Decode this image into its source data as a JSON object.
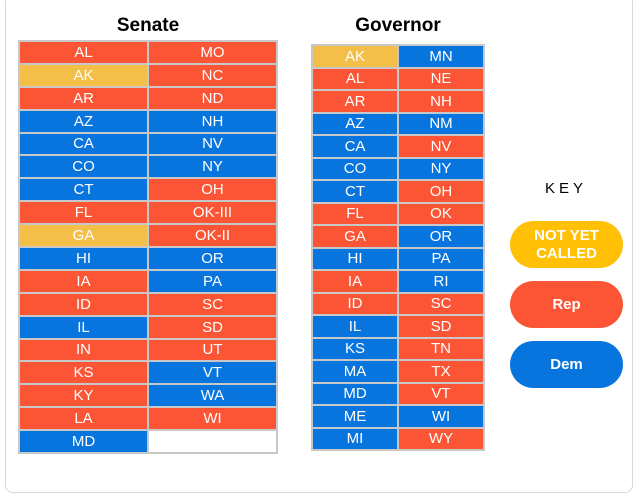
{
  "colors": {
    "rep": "#fc5535",
    "dem": "#0875df",
    "not_called": "#f4bf48",
    "empty": "#ffffff"
  },
  "key": {
    "title": "KEY",
    "items": [
      {
        "label": "NOT YET\nCALLED",
        "color": "#ffc005",
        "status": "not_called"
      },
      {
        "label": "Rep",
        "color": "#fc5535",
        "status": "rep"
      },
      {
        "label": "Dem",
        "color": "#0875df",
        "status": "dem"
      }
    ]
  },
  "chart_data": [
    {
      "type": "table",
      "title": "Senate",
      "columns": [
        [
          {
            "state": "AL",
            "status": "rep"
          },
          {
            "state": "AK",
            "status": "not_called"
          },
          {
            "state": "AR",
            "status": "rep"
          },
          {
            "state": "AZ",
            "status": "dem"
          },
          {
            "state": "CA",
            "status": "dem"
          },
          {
            "state": "CO",
            "status": "dem"
          },
          {
            "state": "CT",
            "status": "dem"
          },
          {
            "state": "FL",
            "status": "rep"
          },
          {
            "state": "GA",
            "status": "not_called"
          },
          {
            "state": "HI",
            "status": "dem"
          },
          {
            "state": "IA",
            "status": "rep"
          },
          {
            "state": "ID",
            "status": "rep"
          },
          {
            "state": "IL",
            "status": "dem"
          },
          {
            "state": "IN",
            "status": "rep"
          },
          {
            "state": "KS",
            "status": "rep"
          },
          {
            "state": "KY",
            "status": "rep"
          },
          {
            "state": "LA",
            "status": "rep"
          },
          {
            "state": "MD",
            "status": "dem"
          }
        ],
        [
          {
            "state": "MO",
            "status": "rep"
          },
          {
            "state": "NC",
            "status": "rep"
          },
          {
            "state": "ND",
            "status": "rep"
          },
          {
            "state": "NH",
            "status": "dem"
          },
          {
            "state": "NV",
            "status": "dem"
          },
          {
            "state": "NY",
            "status": "dem"
          },
          {
            "state": "OH",
            "status": "rep"
          },
          {
            "state": "OK-III",
            "status": "rep"
          },
          {
            "state": "OK-II",
            "status": "rep"
          },
          {
            "state": "OR",
            "status": "dem"
          },
          {
            "state": "PA",
            "status": "dem"
          },
          {
            "state": "SC",
            "status": "rep"
          },
          {
            "state": "SD",
            "status": "rep"
          },
          {
            "state": "UT",
            "status": "rep"
          },
          {
            "state": "VT",
            "status": "dem"
          },
          {
            "state": "WA",
            "status": "dem"
          },
          {
            "state": "WI",
            "status": "rep"
          },
          {
            "state": "",
            "status": "empty"
          }
        ]
      ]
    },
    {
      "type": "table",
      "title": "Governor",
      "columns": [
        [
          {
            "state": "AK",
            "status": "not_called"
          },
          {
            "state": "AL",
            "status": "rep"
          },
          {
            "state": "AR",
            "status": "rep"
          },
          {
            "state": "AZ",
            "status": "dem"
          },
          {
            "state": "CA",
            "status": "dem"
          },
          {
            "state": "CO",
            "status": "dem"
          },
          {
            "state": "CT",
            "status": "dem"
          },
          {
            "state": "FL",
            "status": "rep"
          },
          {
            "state": "GA",
            "status": "rep"
          },
          {
            "state": "HI",
            "status": "dem"
          },
          {
            "state": "IA",
            "status": "rep"
          },
          {
            "state": "ID",
            "status": "rep"
          },
          {
            "state": "IL",
            "status": "dem"
          },
          {
            "state": "KS",
            "status": "dem"
          },
          {
            "state": "MA",
            "status": "dem"
          },
          {
            "state": "MD",
            "status": "dem"
          },
          {
            "state": "ME",
            "status": "dem"
          },
          {
            "state": "MI",
            "status": "dem"
          }
        ],
        [
          {
            "state": "MN",
            "status": "dem"
          },
          {
            "state": "NE",
            "status": "rep"
          },
          {
            "state": "NH",
            "status": "rep"
          },
          {
            "state": "NM",
            "status": "dem"
          },
          {
            "state": "NV",
            "status": "rep"
          },
          {
            "state": "NY",
            "status": "dem"
          },
          {
            "state": "OH",
            "status": "rep"
          },
          {
            "state": "OK",
            "status": "rep"
          },
          {
            "state": "OR",
            "status": "dem"
          },
          {
            "state": "PA",
            "status": "dem"
          },
          {
            "state": "RI",
            "status": "dem"
          },
          {
            "state": "SC",
            "status": "rep"
          },
          {
            "state": "SD",
            "status": "rep"
          },
          {
            "state": "TN",
            "status": "rep"
          },
          {
            "state": "TX",
            "status": "rep"
          },
          {
            "state": "VT",
            "status": "rep"
          },
          {
            "state": "WI",
            "status": "dem"
          },
          {
            "state": "WY",
            "status": "rep"
          }
        ]
      ]
    }
  ]
}
